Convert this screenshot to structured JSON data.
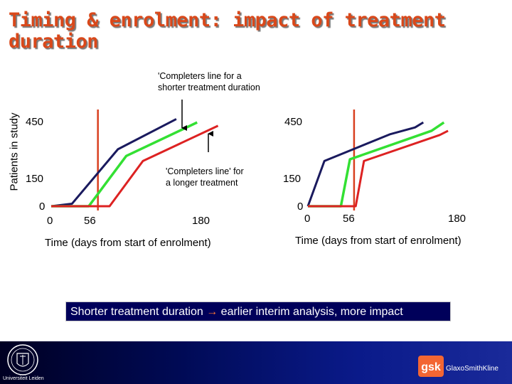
{
  "title": "Timing & enrolment: impact of treatment duration",
  "colors": {
    "title": "#d9481a",
    "navy_series": "#1a1a5e",
    "green_series": "#33e033",
    "red_series": "#dd2222",
    "marker_line": "#d94020",
    "banner_bg": "#00005a"
  },
  "annotations": {
    "shorter_line1": "'Completers line for a",
    "shorter_line2": "shorter treatment duration",
    "longer_line1": "'Completers line'  for",
    "longer_line2": "a longer treatment"
  },
  "chart_data": [
    {
      "type": "line",
      "ylabel": "Patients in study",
      "xlabel": "Time (days from start of enrolment)",
      "x_ticks": [
        "0",
        "56",
        "180"
      ],
      "y_ticks": [
        "0",
        "150",
        "450"
      ],
      "marker_x": 56,
      "series": [
        {
          "color_key": "navy_series",
          "x": [
            0,
            25,
            80,
            150
          ],
          "y": [
            0,
            15,
            340,
            520
          ]
        },
        {
          "color_key": "green_series",
          "x": [
            0,
            45,
            90,
            175
          ],
          "y": [
            0,
            0,
            300,
            500
          ]
        },
        {
          "color_key": "red_series",
          "x": [
            0,
            70,
            110,
            200
          ],
          "y": [
            0,
            0,
            270,
            480
          ]
        }
      ]
    },
    {
      "type": "line",
      "ylabel": "",
      "xlabel": "Time (days from start of enrolment)",
      "x_ticks": [
        "0",
        "56",
        "180"
      ],
      "y_ticks": [
        "0",
        "150",
        "450"
      ],
      "marker_x": 56,
      "series": [
        {
          "color_key": "navy_series",
          "x": [
            0,
            20,
            100,
            130,
            140
          ],
          "y": [
            0,
            270,
            430,
            470,
            500
          ]
        },
        {
          "color_key": "green_series",
          "x": [
            0,
            40,
            51,
            150,
            165
          ],
          "y": [
            0,
            0,
            280,
            450,
            500
          ]
        },
        {
          "color_key": "red_series",
          "x": [
            0,
            58,
            68,
            160,
            170
          ],
          "y": [
            0,
            0,
            270,
            425,
            450
          ]
        }
      ]
    }
  ],
  "banner": {
    "text_a": "Shorter treatment duration",
    "arrow": "→",
    "text_b": "earlier interim analysis, more impact"
  },
  "footer": {
    "left_logo_caption": "Universiteit Leiden",
    "right_logo_mark": "gsk",
    "right_logo_name": "GlaxoSmithKline"
  }
}
